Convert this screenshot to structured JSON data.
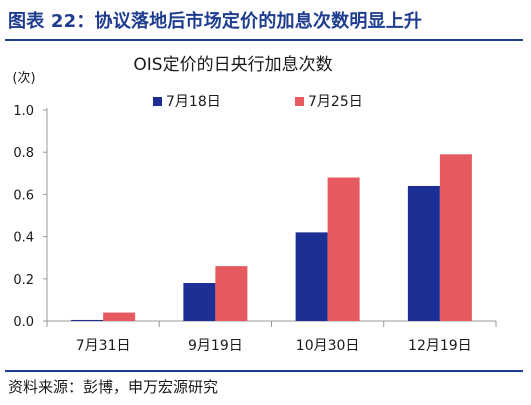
{
  "header": {
    "title": "图表 22：协议落地后市场定价的加息次数明显上升"
  },
  "colors": {
    "brand": "#1f3d8f",
    "series1": "#1b2f95",
    "series2": "#e5595f",
    "grid": "#999999"
  },
  "chart_data": {
    "type": "bar",
    "title": "OIS定价的日央行加息次数",
    "ylabel": "(次)",
    "xlabel": "",
    "categories": [
      "7月31日",
      "9月19日",
      "10月30日",
      "12月19日"
    ],
    "series": [
      {
        "name": "7月18日",
        "values": [
          0.005,
          0.18,
          0.42,
          0.64
        ]
      },
      {
        "name": "7月25日",
        "values": [
          0.04,
          0.26,
          0.68,
          0.79
        ]
      }
    ],
    "ylim": [
      0,
      1.0
    ],
    "yticks": [
      "0.0",
      "0.2",
      "0.4",
      "0.6",
      "0.8",
      "1.0"
    ],
    "legend_position": "top",
    "grid": false
  },
  "footer": {
    "source": "资料来源：彭博，申万宏源研究"
  }
}
